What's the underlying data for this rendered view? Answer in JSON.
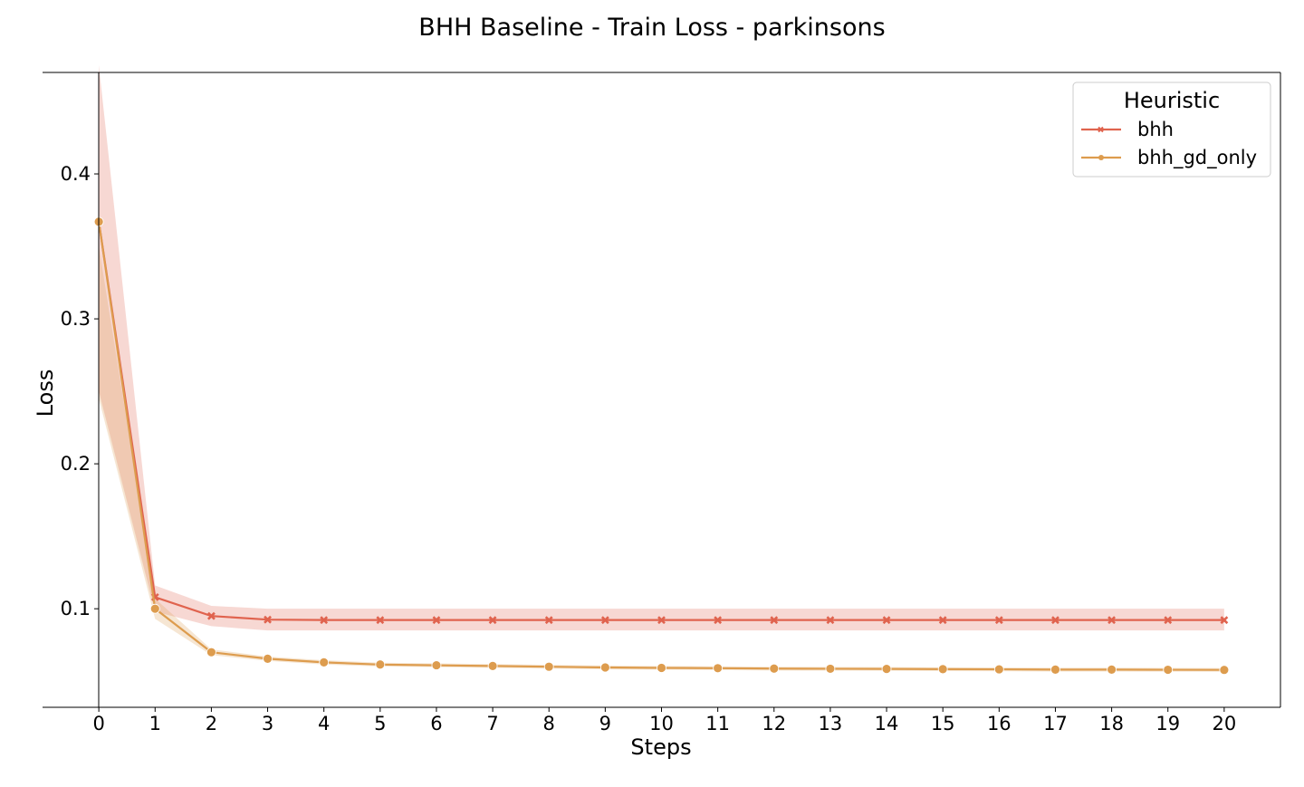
{
  "chart_data": {
    "type": "line",
    "title": "BHH Baseline - Train Loss - parkinsons",
    "xlabel": "Steps",
    "ylabel": "Loss",
    "x": [
      0,
      1,
      2,
      3,
      4,
      5,
      6,
      7,
      8,
      9,
      10,
      11,
      12,
      13,
      14,
      15,
      16,
      17,
      18,
      19,
      20
    ],
    "xlim": [
      -1,
      21
    ],
    "ylim": [
      0.032,
      0.47
    ],
    "yticks": [
      0.1,
      0.2,
      0.3,
      0.4
    ],
    "ytick_labels": [
      "0.1",
      "0.2",
      "0.3",
      "0.4"
    ],
    "grid": false,
    "legend": {
      "title": "Heuristic",
      "position": "top-right"
    },
    "series": [
      {
        "name": "bhh",
        "color": "#e0634e",
        "marker": "x",
        "values": [
          0.367,
          0.108,
          0.095,
          0.0925,
          0.0922,
          0.0922,
          0.0922,
          0.0922,
          0.0922,
          0.0922,
          0.0922,
          0.0922,
          0.0922,
          0.0922,
          0.0922,
          0.0922,
          0.0922,
          0.0922,
          0.0922,
          0.0922,
          0.0922
        ],
        "ci_lower": [
          0.25,
          0.098,
          0.088,
          0.085,
          0.085,
          0.085,
          0.085,
          0.085,
          0.085,
          0.085,
          0.085,
          0.085,
          0.085,
          0.085,
          0.085,
          0.085,
          0.085,
          0.085,
          0.085,
          0.085,
          0.085
        ],
        "ci_upper": [
          0.475,
          0.116,
          0.102,
          0.1,
          0.1,
          0.1,
          0.1,
          0.1,
          0.1,
          0.1,
          0.1,
          0.1,
          0.1,
          0.1,
          0.1,
          0.1,
          0.1,
          0.1,
          0.1,
          0.1,
          0.1
        ]
      },
      {
        "name": "bhh_gd_only",
        "color": "#dd9c4e",
        "marker": "o",
        "values": [
          0.367,
          0.1,
          0.07,
          0.0655,
          0.063,
          0.0615,
          0.061,
          0.0605,
          0.06,
          0.0595,
          0.0592,
          0.059,
          0.0587,
          0.0586,
          0.0585,
          0.0583,
          0.0582,
          0.058,
          0.058,
          0.0579,
          0.0578
        ],
        "ci_lower": [
          0.245,
          0.093,
          0.068,
          0.064,
          0.0615,
          0.0602,
          0.0597,
          0.0592,
          0.0587,
          0.0582,
          0.0579,
          0.0577,
          0.0574,
          0.0573,
          0.0572,
          0.057,
          0.0569,
          0.0567,
          0.0567,
          0.0566,
          0.0565
        ],
        "ci_upper": [
          0.35,
          0.107,
          0.072,
          0.067,
          0.0645,
          0.0628,
          0.0623,
          0.0618,
          0.0613,
          0.0608,
          0.0605,
          0.0603,
          0.06,
          0.0599,
          0.0598,
          0.0596,
          0.0595,
          0.0593,
          0.0593,
          0.0592,
          0.0591
        ]
      }
    ]
  }
}
